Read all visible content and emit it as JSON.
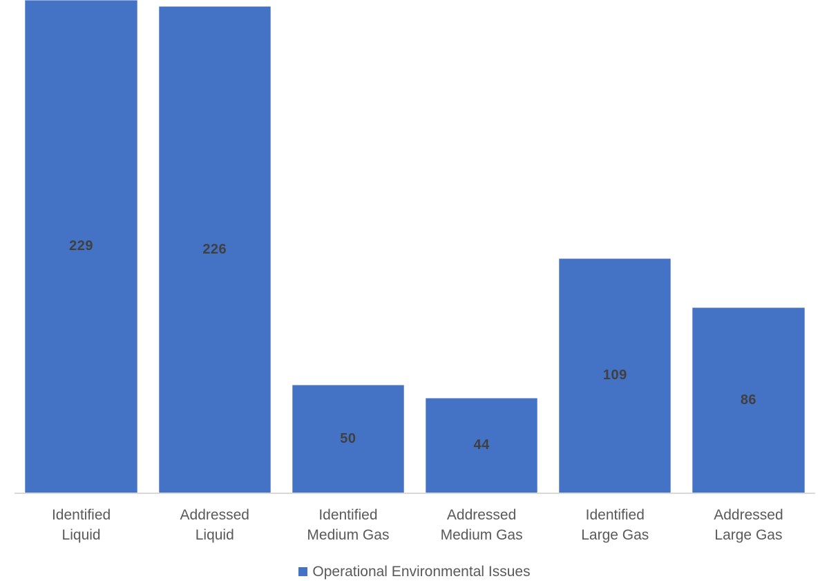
{
  "chart_data": {
    "type": "bar",
    "title": "",
    "xlabel": "",
    "ylabel": "",
    "categories": [
      "Identified Liquid",
      "Addressed Liquid",
      "Identified Medium Gas",
      "Addressed Medium Gas",
      "Identified Large Gas",
      "Addressed Large Gas"
    ],
    "categories_display": [
      [
        "Identified",
        "Liquid"
      ],
      [
        "Addressed",
        "Liquid"
      ],
      [
        "Identified",
        "Medium Gas"
      ],
      [
        "Addressed",
        "Medium Gas"
      ],
      [
        "Identified",
        "Large Gas"
      ],
      [
        "Addressed",
        "Large Gas"
      ]
    ],
    "values": [
      229,
      226,
      50,
      44,
      109,
      86
    ],
    "series_name": "Operational Environmental Issues",
    "ylim": [
      0,
      229
    ],
    "grid": false,
    "legend_position": "bottom-center",
    "data_labels": "inside-center",
    "colors": {
      "bar": "#4472C4",
      "data_label": "#404040",
      "axis_label": "#595959",
      "legend_text": "#595959",
      "axis_line": "#D9D9D9",
      "background": "#FFFFFF"
    }
  }
}
